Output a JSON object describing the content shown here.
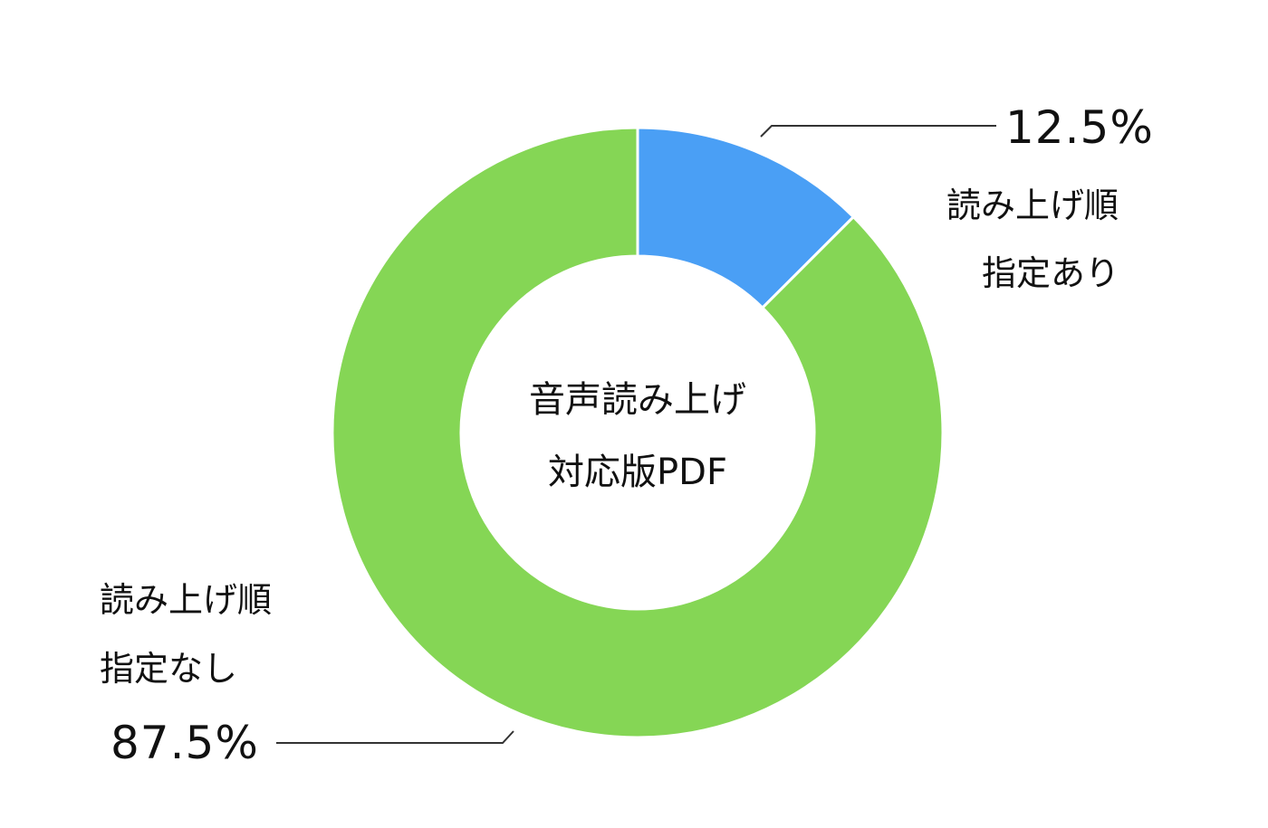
{
  "chart_data": {
    "type": "pie",
    "title": "",
    "center_label": [
      "音声読み上げ",
      "対応版PDF"
    ],
    "slices": [
      {
        "label": [
          "読み上げ順",
          "指定あり"
        ],
        "value": 12.5,
        "value_label": "12.5%",
        "color": "#4a9ff5"
      },
      {
        "label": [
          "読み上げ順",
          "指定なし"
        ],
        "value": 87.5,
        "value_label": "87.5%",
        "color": "#85d655"
      }
    ],
    "donut": true,
    "legend": "none",
    "leader_line_color": "#333333"
  }
}
